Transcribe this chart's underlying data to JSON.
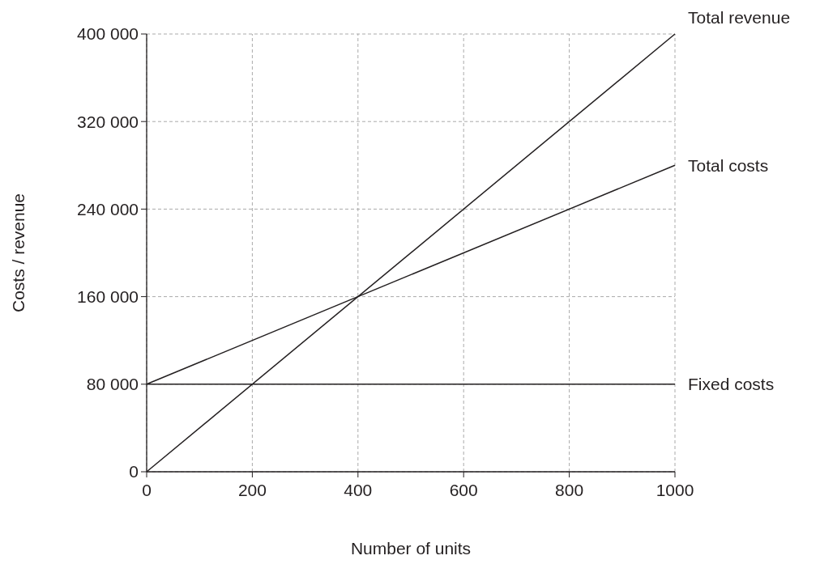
{
  "chart_data": {
    "type": "line",
    "xlabel": "Number of units",
    "ylabel": "Costs / revenue",
    "x": [
      0,
      1000
    ],
    "series": [
      {
        "name": "Total revenue",
        "color": "#231f20",
        "values": [
          0,
          400000
        ]
      },
      {
        "name": "Total costs",
        "color": "#231f20",
        "values": [
          80000,
          280000
        ]
      },
      {
        "name": "Fixed costs",
        "color": "#231f20",
        "values": [
          80000,
          80000
        ]
      }
    ],
    "xlim": [
      0,
      1000
    ],
    "xticks": [
      0,
      200,
      400,
      600,
      800,
      1000
    ],
    "ylim": [
      0,
      400000
    ],
    "yticks": [
      0,
      {
        "value": 80000,
        "label": "80 000"
      },
      {
        "value": 160000,
        "label": "160 000"
      },
      {
        "value": 240000,
        "label": "240 000"
      },
      {
        "value": 320000,
        "label": "320 000"
      },
      {
        "value": 400000,
        "label": "400 000"
      }
    ],
    "grid": true,
    "marker": "none",
    "line_style": "solid"
  }
}
